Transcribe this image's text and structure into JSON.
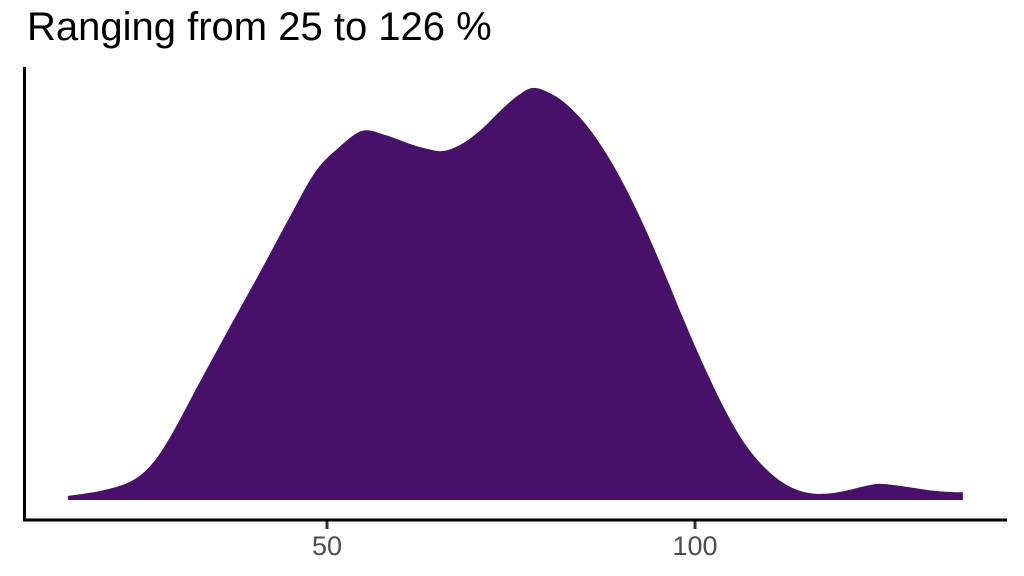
{
  "chart": {
    "title": "Ranging from 25 to 126 %",
    "x_axis": {
      "tick_labels": [
        "50",
        "100"
      ]
    }
  },
  "chart_data": {
    "type": "area",
    "variant": "density",
    "title": "Ranging from 25 to 126 %",
    "xlabel": "",
    "ylabel": "",
    "grid": false,
    "legend": "none",
    "x_ticks": [
      50,
      100
    ],
    "x_axis_extent": [
      9,
      142
    ],
    "data_range_pct": [
      25,
      126
    ],
    "peaks_x": [
      54.8,
      77.9,
      124.9
    ],
    "fill_color": "#471069",
    "axis_color": "#000000",
    "tick_color": "#333333",
    "tick_label_color": "#4d4d4d",
    "series": [
      {
        "name": "density",
        "x": [
          14.8,
          19.2,
          23.2,
          26.0,
          28.7,
          32.7,
          36.8,
          40.9,
          45.0,
          48.4,
          51.5,
          54.8,
          57.9,
          61.3,
          63.7,
          65.8,
          68.3,
          71.0,
          73.8,
          75.9,
          77.9,
          80.0,
          82.3,
          85.1,
          87.8,
          90.5,
          93.2,
          95.9,
          98.6,
          101.4,
          104.1,
          106.8,
          109.5,
          112.2,
          114.9,
          117.7,
          120.4,
          122.7,
          124.9,
          127.2,
          129.9,
          132.6,
          135.3,
          136.4
        ],
        "y": [
          0.01,
          0.022,
          0.044,
          0.083,
          0.153,
          0.286,
          0.42,
          0.553,
          0.689,
          0.796,
          0.854,
          0.896,
          0.886,
          0.864,
          0.852,
          0.847,
          0.864,
          0.9,
          0.949,
          0.981,
          1.0,
          0.99,
          0.964,
          0.913,
          0.845,
          0.76,
          0.66,
          0.549,
          0.432,
          0.318,
          0.218,
          0.136,
          0.078,
          0.039,
          0.019,
          0.015,
          0.022,
          0.032,
          0.039,
          0.036,
          0.029,
          0.022,
          0.019,
          0.019
        ]
      }
    ]
  }
}
